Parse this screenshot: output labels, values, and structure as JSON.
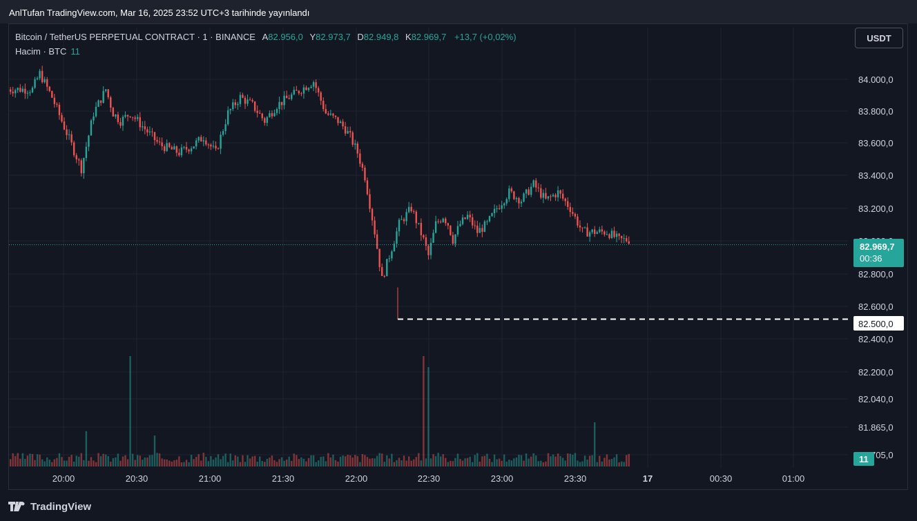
{
  "published_text": "AnlTufan TradingView.com, Mar 16, 2025 23:52 UTC+3 tarihinde yayınlandı",
  "legend": {
    "symbol": "Bitcoin / TetherUS PERPETUAL CONTRACT · 1 · BINANCE",
    "open_label": "A",
    "open_value": "82.956,0",
    "high_label": "Y",
    "high_value": "82.973,7",
    "low_label": "D",
    "low_value": "82.949,8",
    "close_label": "K",
    "close_value": "82.969,7",
    "change": "+13,7 (+0,02%)"
  },
  "volume_legend": {
    "label": "Hacim · BTC",
    "value": "11"
  },
  "currency_button": "USDT",
  "brand": "TradingView",
  "colors": {
    "up": "#26a69a",
    "down": "#ef5350",
    "background": "#131722",
    "grid": "#1f2330"
  },
  "price_tag": {
    "price": "82.969,7",
    "countdown": "00:36"
  },
  "level_tag": "82.500,0",
  "volume_tag": "11",
  "chart_data": {
    "type": "candlestick",
    "price_ticks": [
      "84.000,0",
      "83.800,0",
      "83.600,0",
      "83.400,0",
      "83.200,0",
      "83.000,0",
      "82.800,0",
      "82.600,0",
      "82.400,0"
    ],
    "volume_scale_ticks": [
      "82.200,0",
      "82.040,0",
      "81.865,0",
      "81.705,0"
    ],
    "x_ticks": [
      "20:00",
      "20:30",
      "21:00",
      "21:30",
      "22:00",
      "22:30",
      "23:00",
      "23:30",
      "17",
      "00:30",
      "01:00"
    ],
    "ylim": [
      82380,
      84200
    ],
    "horizontal_level": 82500,
    "last_price": 82969.7,
    "series": [
      {
        "name": "price_path",
        "x_minutes_from_1940": [
          0,
          3,
          8,
          12,
          16,
          20,
          25,
          30,
          33,
          36,
          40,
          46,
          52,
          60,
          66,
          70,
          75,
          80,
          85,
          90,
          95,
          100,
          105,
          110,
          115,
          120,
          125,
          128,
          130,
          133,
          136,
          140,
          143,
          146,
          150,
          155,
          160,
          162,
          165,
          168,
          170,
          172,
          175,
          178,
          182,
          186,
          190,
          195,
          200,
          205,
          210,
          215,
          220,
          225,
          230,
          235,
          240,
          245,
          250,
          255,
          260,
          265,
          270,
          275,
          280,
          285,
          290,
          295
        ],
        "close": [
          83950,
          84050,
          83900,
          83750,
          83600,
          83450,
          83800,
          83950,
          83800,
          83750,
          83800,
          83700,
          83600,
          83550,
          83600,
          83650,
          83550,
          83800,
          83900,
          83850,
          83750,
          83850,
          83900,
          83950,
          84000,
          83800,
          83750,
          83700,
          83650,
          83550,
          83400,
          83050,
          82750,
          82900,
          83100,
          83200,
          83000,
          82900,
          83100,
          83150,
          83100,
          83000,
          83100,
          83150,
          83050,
          83100,
          83200,
          83300,
          83250,
          83350,
          83250,
          83300,
          83200,
          83050,
          83050,
          83050,
          83000,
          83000,
          83050,
          83000,
          82950,
          82900,
          83000,
          82960,
          82970,
          82970,
          82970,
          82970
        ]
      }
    ],
    "volume": {
      "spikes": [
        {
          "minute": 40,
          "value": 100
        },
        {
          "minute": 160,
          "value": 100
        },
        {
          "minute": 162,
          "value": 90
        },
        {
          "minute": 230,
          "value": 40
        },
        {
          "minute": 50,
          "value": 28
        },
        {
          "minute": 22,
          "value": 32
        }
      ]
    }
  }
}
